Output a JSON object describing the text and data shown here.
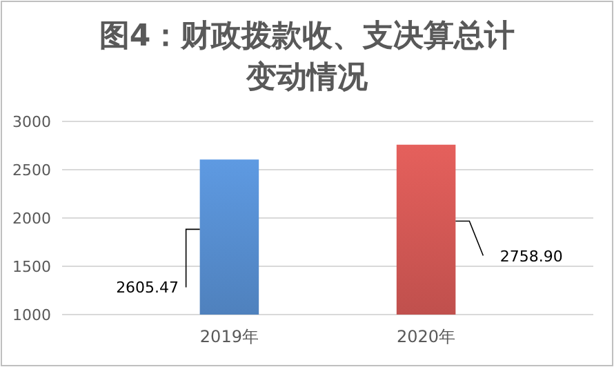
{
  "chart_data": {
    "type": "bar",
    "title": "图4：财政拨款收、支决算总计变动情况",
    "categories": [
      "2019年",
      "2020年"
    ],
    "values": [
      2605.47,
      2758.9
    ],
    "value_labels": [
      "2605.47",
      "2758.90"
    ],
    "colors": [
      "#4f81bd",
      "#c0504d"
    ],
    "ylim": [
      1000,
      3000
    ],
    "yticks": [
      1000,
      1500,
      2000,
      2500,
      3000
    ],
    "grid": "y"
  }
}
